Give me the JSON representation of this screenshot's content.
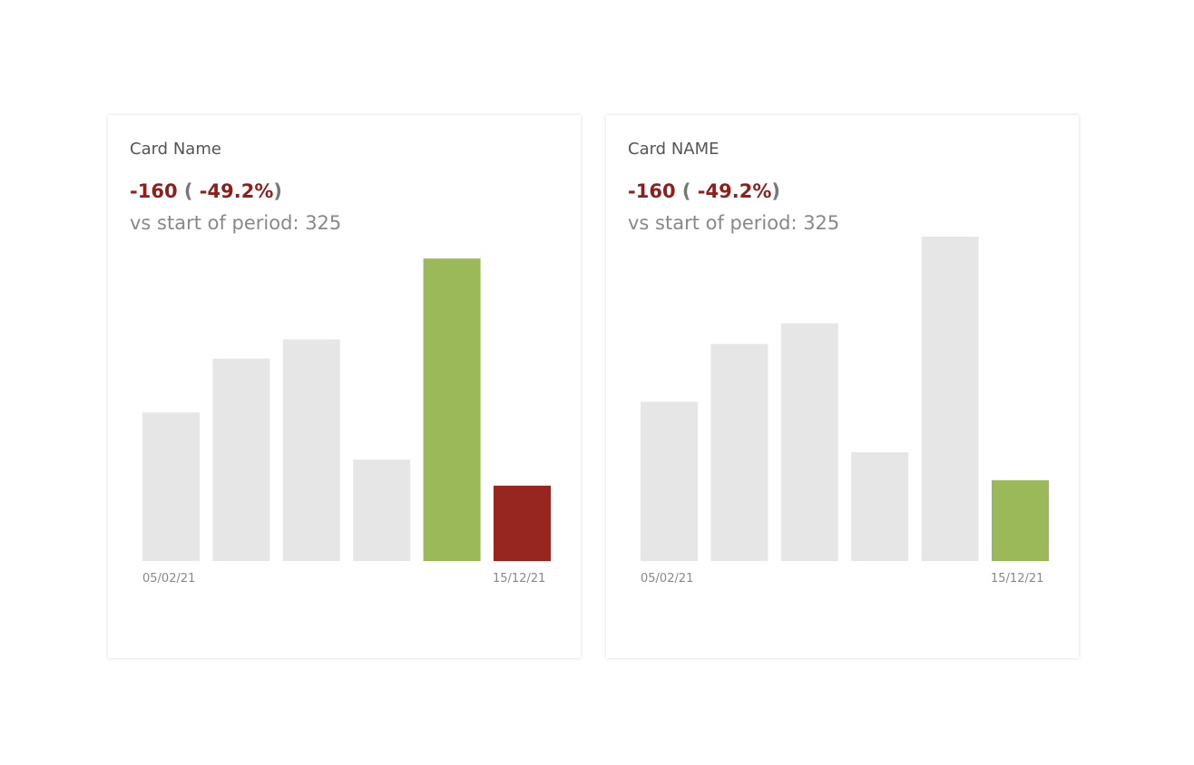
{
  "cards": [
    {
      "title": "Card Name",
      "delta": "-160",
      "delta_pct": "-49.2%",
      "subtitle": "vs start of period: 325",
      "chart_data": {
        "type": "bar",
        "values": [
          325,
          443,
          485,
          222,
          662,
          165
        ],
        "colors": [
          "#e6e6e6",
          "#e6e6e6",
          "#e6e6e6",
          "#e6e6e6",
          "#9cb95a",
          "#982620"
        ],
        "ylim": [
          0,
          710
        ],
        "x_start_label": "05/02/21",
        "x_end_label": "15/12/21"
      }
    },
    {
      "title": "Card NAME",
      "delta": "-160",
      "delta_pct": "-49.2%",
      "subtitle": "vs start of period: 325",
      "chart_data": {
        "type": "bar",
        "values": [
          325,
          443,
          485,
          222,
          662,
          165
        ],
        "colors": [
          "#e6e6e6",
          "#e6e6e6",
          "#e6e6e6",
          "#e6e6e6",
          "#e6e6e6",
          "#9cb95a"
        ],
        "ylim": [
          0,
          662
        ],
        "x_start_label": "05/02/21",
        "x_end_label": "15/12/21"
      }
    }
  ]
}
